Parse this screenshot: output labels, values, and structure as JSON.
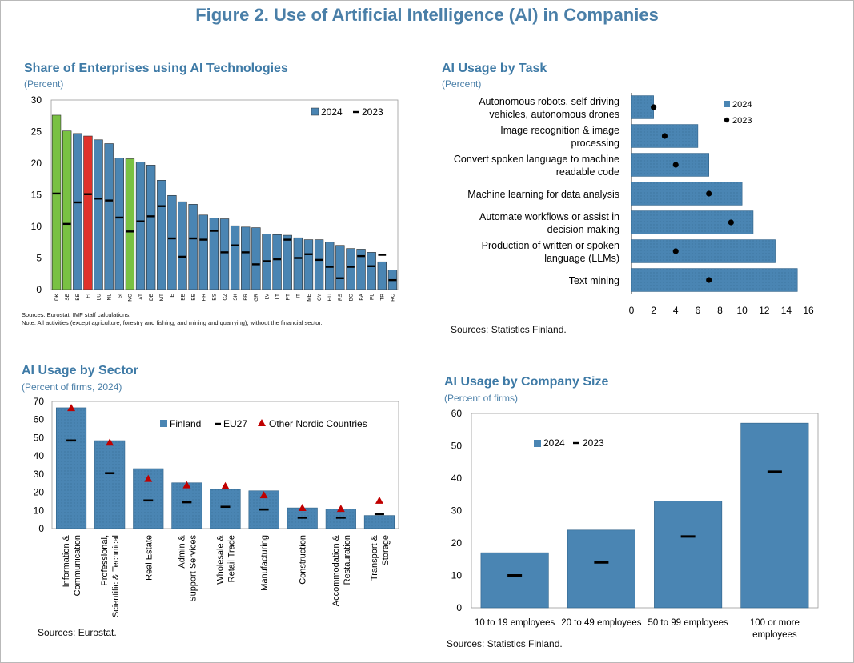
{
  "figure_title": "Figure 2. Use of Artificial Intelligence (AI) in Companies",
  "colors": {
    "bar": "#4a85b3",
    "bar_edge": "#2c5f86",
    "green": "#79c143",
    "red": "#e0322b",
    "title": "#3e7aa6",
    "triangle": "#c00000"
  },
  "panels": {
    "enterprises": {
      "title": "Share of Enterprises using AI Technologies",
      "subtitle": "(Percent)",
      "source": "Sources: Eurostat, IMF staff calculations.",
      "note": "Note: All activities (except agriculture, forestry and fishing, and mining and quarrying), without the financial sector."
    },
    "task": {
      "title": "AI Usage by Task",
      "subtitle": "(Percent)",
      "source": "Sources: Statistics Finland."
    },
    "sector": {
      "title": "AI Usage by Sector",
      "subtitle": "(Percent of firms, 2024)",
      "source": "Sources: Eurostat."
    },
    "size": {
      "title": "AI Usage by Company Size",
      "subtitle": "(Percent of firms)",
      "source": "Sources: Statistics Finland."
    }
  },
  "chart_data": [
    {
      "id": "enterprises",
      "type": "bar",
      "title": "Share of Enterprises using AI Technologies",
      "ylabel": "Percent",
      "ylim": [
        0,
        30
      ],
      "yticks": [
        0,
        5,
        10,
        15,
        20,
        25,
        30
      ],
      "legend": [
        "2024",
        "2023"
      ],
      "legend_position": "top-right",
      "categories": [
        "DK",
        "SE",
        "BE",
        "FI",
        "LU",
        "NL",
        "SI",
        "NO",
        "AT",
        "DE",
        "MT",
        "IE",
        "EE",
        "EE",
        "HR",
        "ES",
        "CZ",
        "SK",
        "FR",
        "GR",
        "LV",
        "LT",
        "PT",
        "IT",
        "ME",
        "CY",
        "HU",
        "RS",
        "BG",
        "BA",
        "PL",
        "TR",
        "RO"
      ],
      "series": [
        {
          "name": "2024",
          "values": [
            27.6,
            25.1,
            24.7,
            24.3,
            23.7,
            23.1,
            20.8,
            20.7,
            20.2,
            19.7,
            17.3,
            14.9,
            13.9,
            13.5,
            11.8,
            11.3,
            11.2,
            10.1,
            9.9,
            9.8,
            8.8,
            8.7,
            8.6,
            8.2,
            7.9,
            7.9,
            7.5,
            7.0,
            6.5,
            6.4,
            5.9,
            4.4,
            3.1
          ]
        },
        {
          "name": "2023",
          "values": [
            15.2,
            10.4,
            13.8,
            15.1,
            14.4,
            14.1,
            11.4,
            9.2,
            10.8,
            11.6,
            13.2,
            8.1,
            5.2,
            8.1,
            7.9,
            9.3,
            5.9,
            7.0,
            5.9,
            4.0,
            4.5,
            4.8,
            7.9,
            5.0,
            5.6,
            4.7,
            3.6,
            1.8,
            3.6,
            5.3,
            3.7,
            5.5,
            1.5
          ]
        }
      ],
      "highlight": {
        "green": [
          "DK",
          "SE",
          "NO"
        ],
        "red": [
          "FI"
        ]
      }
    },
    {
      "id": "task",
      "type": "bar",
      "orientation": "horizontal",
      "title": "AI Usage by Task",
      "xlim": [
        0,
        16
      ],
      "xticks": [
        0,
        2,
        4,
        6,
        8,
        10,
        12,
        14,
        16
      ],
      "legend": [
        "2024",
        "2023"
      ],
      "legend_position": "top-right",
      "categories": [
        [
          "Autonomous robots, self-driving",
          "vehicles, autonomous drones"
        ],
        [
          "Image recognition & image",
          "processing"
        ],
        [
          "Convert spoken language to machine",
          "readable code"
        ],
        [
          "Machine learning for data analysis"
        ],
        [
          "Automate workflows or assist in",
          "decision-making"
        ],
        [
          "Production of written or spoken",
          "language (LLMs)"
        ],
        [
          "Text mining"
        ]
      ],
      "series": [
        {
          "name": "2024",
          "values": [
            2,
            6,
            7,
            10,
            11,
            13,
            15
          ]
        },
        {
          "name": "2023",
          "values": [
            2,
            3,
            4,
            7,
            9,
            4,
            7
          ]
        }
      ]
    },
    {
      "id": "sector",
      "type": "bar",
      "title": "AI Usage by Sector",
      "ylim": [
        0,
        70
      ],
      "yticks": [
        0,
        10,
        20,
        30,
        40,
        50,
        60,
        70
      ],
      "legend": [
        "Finland",
        "EU27",
        "Other Nordic Countries"
      ],
      "legend_position": "top-right",
      "categories": [
        [
          "Information &",
          "Communication"
        ],
        [
          "Professional,",
          "Scientific & Technical"
        ],
        [
          "Real Estate"
        ],
        [
          "Admin &",
          "Support Services"
        ],
        [
          "Wholesale &",
          "Retail Trade"
        ],
        [
          "Manufacturing"
        ],
        [
          "Construction"
        ],
        [
          "Accommodation &",
          "Restauration"
        ],
        [
          "Transport &",
          "Storage"
        ]
      ],
      "series": [
        {
          "name": "Finland",
          "values": [
            66.5,
            48.4,
            33.0,
            25.2,
            21.6,
            20.8,
            11.4,
            10.7,
            7.2
          ]
        },
        {
          "name": "EU27",
          "values": [
            48.5,
            30.5,
            15.5,
            14.5,
            12.0,
            10.5,
            6.0,
            6.0,
            8.0
          ]
        },
        {
          "name": "Other Nordic Countries",
          "values": [
            66.0,
            47.0,
            27.0,
            23.5,
            23.0,
            18.0,
            11.0,
            10.5,
            15.0
          ]
        }
      ]
    },
    {
      "id": "size",
      "type": "bar",
      "title": "AI Usage by Company Size",
      "ylim": [
        0,
        60
      ],
      "yticks": [
        0,
        10,
        20,
        30,
        40,
        50,
        60
      ],
      "legend": [
        "2024",
        "2023"
      ],
      "legend_position": "top-left",
      "categories": [
        [
          "10 to 19 employees"
        ],
        [
          "20 to 49 employees"
        ],
        [
          "50 to 99 employees"
        ],
        [
          "100 or more",
          "employees"
        ]
      ],
      "series": [
        {
          "name": "2024",
          "values": [
            17,
            24,
            33,
            57
          ]
        },
        {
          "name": "2023",
          "values": [
            10,
            14,
            22,
            42
          ]
        }
      ]
    }
  ]
}
